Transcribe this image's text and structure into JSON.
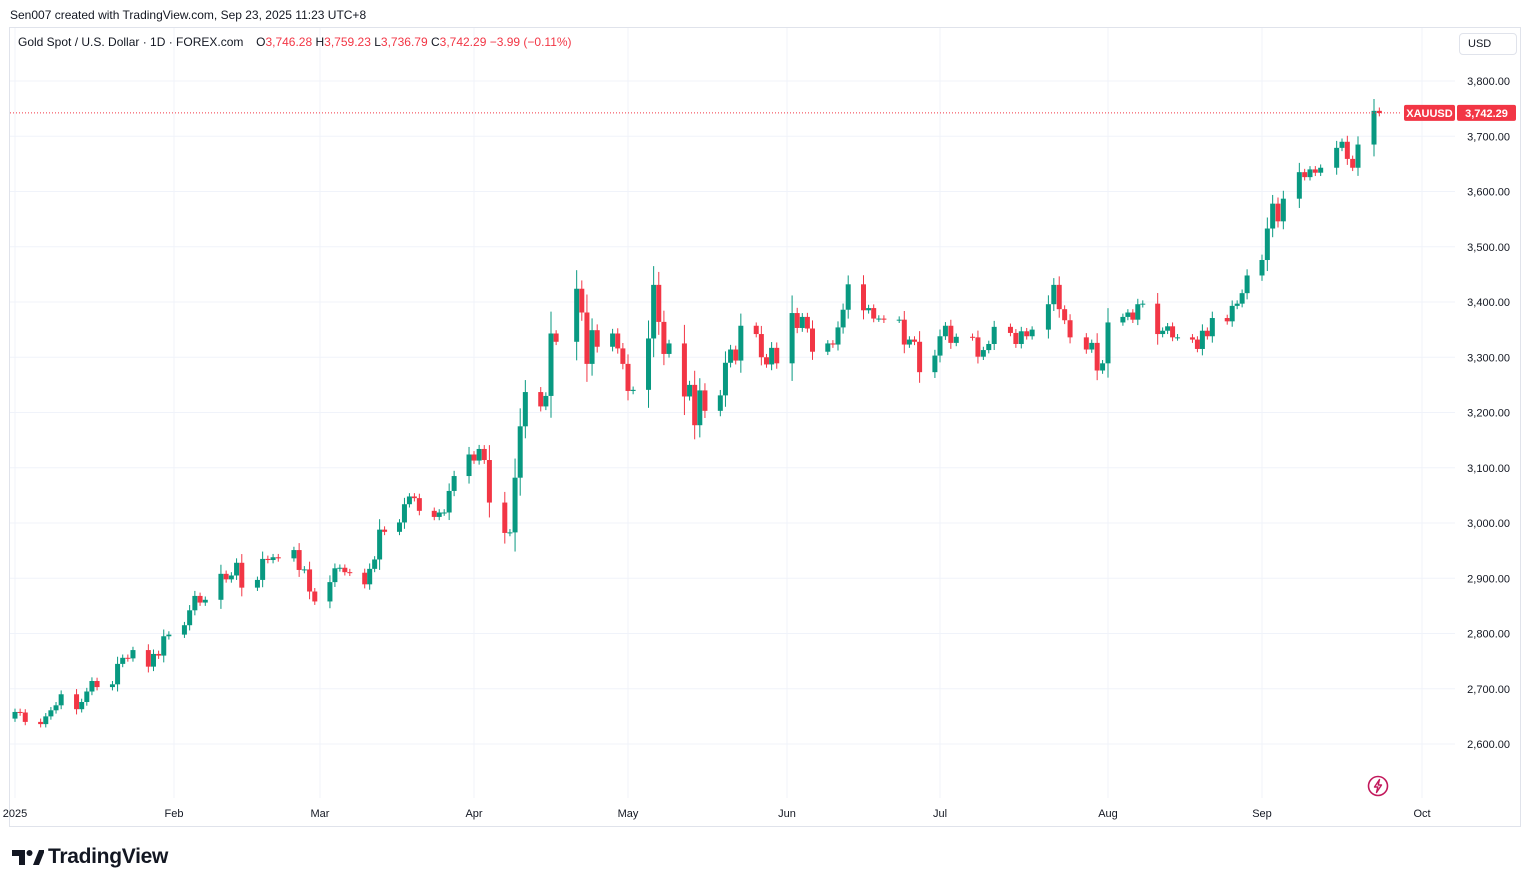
{
  "header": {
    "created_by": "Sen007 created with TradingView.com, Sep 23, 2025 11:23 UTC+8"
  },
  "legend": {
    "symbol": "Gold Spot / U.S. Dollar · 1D · FOREX.com",
    "o_label": "O",
    "o_value": "3,746.28",
    "h_label": "H",
    "h_value": "3,759.23",
    "l_label": "L",
    "l_value": "3,736.79",
    "c_label": "C",
    "c_value": "3,742.29",
    "change": "−3.99 (−0.11%)"
  },
  "currency_button": "USD",
  "price_tag": {
    "label": "XAUUSD",
    "value": "3,742.29"
  },
  "brand": {
    "name": "TradingView"
  },
  "colors": {
    "up": "#089981",
    "down": "#f23645",
    "grid": "#f0f3fa",
    "axis_text": "#131722"
  },
  "icons": {
    "logo": "tradingview-logo-icon",
    "flash": "lightning-icon"
  },
  "chart_data": {
    "type": "candlestick",
    "ylim": [
      2520,
      3830
    ],
    "y_ticks": [
      2600,
      2700,
      2800,
      2900,
      3000,
      3100,
      3200,
      3300,
      3400,
      3500,
      3600,
      3700,
      3800
    ],
    "y_tick_labels": [
      "2,600.00",
      "2,700.00",
      "2,800.00",
      "2,900.00",
      "3,000.00",
      "3,100.00",
      "3,200.00",
      "3,300.00",
      "3,400.00",
      "3,500.00",
      "3,600.00",
      "3,700.00",
      "3,800.00"
    ],
    "x_ticks": [
      {
        "label": "2025",
        "date": "2025-01-01"
      },
      {
        "label": "Feb",
        "date": "2025-02-01"
      },
      {
        "label": "Mar",
        "date": "2025-03-01"
      },
      {
        "label": "Apr",
        "date": "2025-04-01"
      },
      {
        "label": "May",
        "date": "2025-05-01"
      },
      {
        "label": "Jun",
        "date": "2025-06-01"
      },
      {
        "label": "Jul",
        "date": "2025-07-01"
      },
      {
        "label": "Aug",
        "date": "2025-08-01"
      },
      {
        "label": "Sep",
        "date": "2025-09-01"
      },
      {
        "label": "Oct",
        "date": "2025-10-01"
      }
    ],
    "last_price": 3742.29,
    "closes": [
      {
        "date": "2025-01-01",
        "value": 2658
      },
      {
        "date": "2025-01-02",
        "value": 2657
      },
      {
        "date": "2025-01-03",
        "value": 2640
      },
      {
        "date": "2025-01-06",
        "value": 2636
      },
      {
        "date": "2025-01-07",
        "value": 2650
      },
      {
        "date": "2025-01-08",
        "value": 2661
      },
      {
        "date": "2025-01-09",
        "value": 2670
      },
      {
        "date": "2025-01-10",
        "value": 2690
      },
      {
        "date": "2025-01-13",
        "value": 2663
      },
      {
        "date": "2025-01-14",
        "value": 2676
      },
      {
        "date": "2025-01-15",
        "value": 2695
      },
      {
        "date": "2025-01-16",
        "value": 2714
      },
      {
        "date": "2025-01-17",
        "value": 2703
      },
      {
        "date": "2025-01-20",
        "value": 2708
      },
      {
        "date": "2025-01-21",
        "value": 2745
      },
      {
        "date": "2025-01-22",
        "value": 2756
      },
      {
        "date": "2025-01-23",
        "value": 2755
      },
      {
        "date": "2025-01-24",
        "value": 2770
      },
      {
        "date": "2025-01-27",
        "value": 2740
      },
      {
        "date": "2025-01-28",
        "value": 2763
      },
      {
        "date": "2025-01-29",
        "value": 2760
      },
      {
        "date": "2025-01-30",
        "value": 2795
      },
      {
        "date": "2025-01-31",
        "value": 2798
      },
      {
        "date": "2025-02-03",
        "value": 2815
      },
      {
        "date": "2025-02-04",
        "value": 2842
      },
      {
        "date": "2025-02-05",
        "value": 2868
      },
      {
        "date": "2025-02-06",
        "value": 2856
      },
      {
        "date": "2025-02-07",
        "value": 2861
      },
      {
        "date": "2025-02-10",
        "value": 2908
      },
      {
        "date": "2025-02-11",
        "value": 2898
      },
      {
        "date": "2025-02-12",
        "value": 2905
      },
      {
        "date": "2025-02-13",
        "value": 2928
      },
      {
        "date": "2025-02-14",
        "value": 2883
      },
      {
        "date": "2025-02-17",
        "value": 2897
      },
      {
        "date": "2025-02-18",
        "value": 2935
      },
      {
        "date": "2025-02-19",
        "value": 2933
      },
      {
        "date": "2025-02-20",
        "value": 2938
      },
      {
        "date": "2025-02-21",
        "value": 2936
      },
      {
        "date": "2025-02-24",
        "value": 2951
      },
      {
        "date": "2025-02-25",
        "value": 2915
      },
      {
        "date": "2025-02-26",
        "value": 2916
      },
      {
        "date": "2025-02-27",
        "value": 2876
      },
      {
        "date": "2025-02-28",
        "value": 2858
      },
      {
        "date": "2025-03-03",
        "value": 2893
      },
      {
        "date": "2025-03-04",
        "value": 2918
      },
      {
        "date": "2025-03-05",
        "value": 2919
      },
      {
        "date": "2025-03-06",
        "value": 2911
      },
      {
        "date": "2025-03-07",
        "value": 2910
      },
      {
        "date": "2025-03-10",
        "value": 2889
      },
      {
        "date": "2025-03-11",
        "value": 2917
      },
      {
        "date": "2025-03-12",
        "value": 2934
      },
      {
        "date": "2025-03-13",
        "value": 2988
      },
      {
        "date": "2025-03-14",
        "value": 2984
      },
      {
        "date": "2025-03-17",
        "value": 3001
      },
      {
        "date": "2025-03-18",
        "value": 3034
      },
      {
        "date": "2025-03-19",
        "value": 3048
      },
      {
        "date": "2025-03-20",
        "value": 3045
      },
      {
        "date": "2025-03-21",
        "value": 3022
      },
      {
        "date": "2025-03-24",
        "value": 3011
      },
      {
        "date": "2025-03-25",
        "value": 3019
      },
      {
        "date": "2025-03-26",
        "value": 3019
      },
      {
        "date": "2025-03-27",
        "value": 3058
      },
      {
        "date": "2025-03-28",
        "value": 3085
      },
      {
        "date": "2025-03-31",
        "value": 3124
      },
      {
        "date": "2025-04-01",
        "value": 3113
      },
      {
        "date": "2025-04-02",
        "value": 3134
      },
      {
        "date": "2025-04-03",
        "value": 3114
      },
      {
        "date": "2025-04-04",
        "value": 3037
      },
      {
        "date": "2025-04-07",
        "value": 2982
      },
      {
        "date": "2025-04-08",
        "value": 2983
      },
      {
        "date": "2025-04-09",
        "value": 3082
      },
      {
        "date": "2025-04-10",
        "value": 3175
      },
      {
        "date": "2025-04-11",
        "value": 3237
      },
      {
        "date": "2025-04-14",
        "value": 3211
      },
      {
        "date": "2025-04-15",
        "value": 3230
      },
      {
        "date": "2025-04-16",
        "value": 3343
      },
      {
        "date": "2025-04-17",
        "value": 3328
      },
      {
        "date": "2025-04-21",
        "value": 3424
      },
      {
        "date": "2025-04-22",
        "value": 3381
      },
      {
        "date": "2025-04-23",
        "value": 3288
      },
      {
        "date": "2025-04-24",
        "value": 3349
      },
      {
        "date": "2025-04-25",
        "value": 3319
      },
      {
        "date": "2025-04-28",
        "value": 3343
      },
      {
        "date": "2025-04-29",
        "value": 3316
      },
      {
        "date": "2025-04-30",
        "value": 3288
      },
      {
        "date": "2025-05-01",
        "value": 3239
      },
      {
        "date": "2025-05-02",
        "value": 3241
      },
      {
        "date": "2025-05-05",
        "value": 3334
      },
      {
        "date": "2025-05-06",
        "value": 3431
      },
      {
        "date": "2025-05-07",
        "value": 3364
      },
      {
        "date": "2025-05-08",
        "value": 3306
      },
      {
        "date": "2025-05-09",
        "value": 3325
      },
      {
        "date": "2025-05-12",
        "value": 3229
      },
      {
        "date": "2025-05-13",
        "value": 3250
      },
      {
        "date": "2025-05-14",
        "value": 3177
      },
      {
        "date": "2025-05-15",
        "value": 3240
      },
      {
        "date": "2025-05-16",
        "value": 3203
      },
      {
        "date": "2025-05-19",
        "value": 3231
      },
      {
        "date": "2025-05-20",
        "value": 3290
      },
      {
        "date": "2025-05-21",
        "value": 3314
      },
      {
        "date": "2025-05-22",
        "value": 3294
      },
      {
        "date": "2025-05-23",
        "value": 3357
      },
      {
        "date": "2025-05-26",
        "value": 3342
      },
      {
        "date": "2025-05-27",
        "value": 3300
      },
      {
        "date": "2025-05-28",
        "value": 3287
      },
      {
        "date": "2025-05-29",
        "value": 3317
      },
      {
        "date": "2025-05-30",
        "value": 3289
      },
      {
        "date": "2025-06-02",
        "value": 3380
      },
      {
        "date": "2025-06-03",
        "value": 3353
      },
      {
        "date": "2025-06-04",
        "value": 3373
      },
      {
        "date": "2025-06-05",
        "value": 3352
      },
      {
        "date": "2025-06-06",
        "value": 3310
      },
      {
        "date": "2025-06-09",
        "value": 3325
      },
      {
        "date": "2025-06-10",
        "value": 3323
      },
      {
        "date": "2025-06-11",
        "value": 3354
      },
      {
        "date": "2025-06-12",
        "value": 3386
      },
      {
        "date": "2025-06-13",
        "value": 3432
      },
      {
        "date": "2025-06-16",
        "value": 3385
      },
      {
        "date": "2025-06-17",
        "value": 3389
      },
      {
        "date": "2025-06-18",
        "value": 3370
      },
      {
        "date": "2025-06-19",
        "value": 3370
      },
      {
        "date": "2025-06-20",
        "value": 3368
      },
      {
        "date": "2025-06-23",
        "value": 3368
      },
      {
        "date": "2025-06-24",
        "value": 3323
      },
      {
        "date": "2025-06-25",
        "value": 3332
      },
      {
        "date": "2025-06-26",
        "value": 3328
      },
      {
        "date": "2025-06-27",
        "value": 3273
      },
      {
        "date": "2025-06-30",
        "value": 3303
      },
      {
        "date": "2025-07-01",
        "value": 3338
      },
      {
        "date": "2025-07-02",
        "value": 3357
      },
      {
        "date": "2025-07-03",
        "value": 3326
      },
      {
        "date": "2025-07-04",
        "value": 3337
      },
      {
        "date": "2025-07-07",
        "value": 3336
      },
      {
        "date": "2025-07-08",
        "value": 3301
      },
      {
        "date": "2025-07-09",
        "value": 3313
      },
      {
        "date": "2025-07-10",
        "value": 3324
      },
      {
        "date": "2025-07-11",
        "value": 3355
      },
      {
        "date": "2025-07-14",
        "value": 3344
      },
      {
        "date": "2025-07-15",
        "value": 3324
      },
      {
        "date": "2025-07-16",
        "value": 3347
      },
      {
        "date": "2025-07-17",
        "value": 3338
      },
      {
        "date": "2025-07-18",
        "value": 3350
      },
      {
        "date": "2025-07-21",
        "value": 3396
      },
      {
        "date": "2025-07-22",
        "value": 3431
      },
      {
        "date": "2025-07-23",
        "value": 3387
      },
      {
        "date": "2025-07-24",
        "value": 3367
      },
      {
        "date": "2025-07-25",
        "value": 3336
      },
      {
        "date": "2025-07-28",
        "value": 3314
      },
      {
        "date": "2025-07-29",
        "value": 3326
      },
      {
        "date": "2025-07-30",
        "value": 3276
      },
      {
        "date": "2025-07-31",
        "value": 3289
      },
      {
        "date": "2025-08-01",
        "value": 3363
      },
      {
        "date": "2025-08-04",
        "value": 3373
      },
      {
        "date": "2025-08-05",
        "value": 3381
      },
      {
        "date": "2025-08-06",
        "value": 3368
      },
      {
        "date": "2025-08-07",
        "value": 3396
      },
      {
        "date": "2025-08-08",
        "value": 3397
      },
      {
        "date": "2025-08-11",
        "value": 3342
      },
      {
        "date": "2025-08-12",
        "value": 3348
      },
      {
        "date": "2025-08-13",
        "value": 3356
      },
      {
        "date": "2025-08-14",
        "value": 3336
      },
      {
        "date": "2025-08-15",
        "value": 3336
      },
      {
        "date": "2025-08-18",
        "value": 3332
      },
      {
        "date": "2025-08-19",
        "value": 3315
      },
      {
        "date": "2025-08-20",
        "value": 3348
      },
      {
        "date": "2025-08-21",
        "value": 3338
      },
      {
        "date": "2025-08-22",
        "value": 3371
      },
      {
        "date": "2025-08-25",
        "value": 3365
      },
      {
        "date": "2025-08-26",
        "value": 3393
      },
      {
        "date": "2025-08-27",
        "value": 3397
      },
      {
        "date": "2025-08-28",
        "value": 3416
      },
      {
        "date": "2025-08-29",
        "value": 3448
      },
      {
        "date": "2025-09-01",
        "value": 3476
      },
      {
        "date": "2025-09-02",
        "value": 3533
      },
      {
        "date": "2025-09-03",
        "value": 3578
      },
      {
        "date": "2025-09-04",
        "value": 3546
      },
      {
        "date": "2025-09-05",
        "value": 3587
      },
      {
        "date": "2025-09-08",
        "value": 3635
      },
      {
        "date": "2025-09-09",
        "value": 3626
      },
      {
        "date": "2025-09-10",
        "value": 3640
      },
      {
        "date": "2025-09-11",
        "value": 3634
      },
      {
        "date": "2025-09-12",
        "value": 3643
      },
      {
        "date": "2025-09-15",
        "value": 3679
      },
      {
        "date": "2025-09-16",
        "value": 3690
      },
      {
        "date": "2025-09-17",
        "value": 3659
      },
      {
        "date": "2025-09-18",
        "value": 3643
      },
      {
        "date": "2025-09-19",
        "value": 3685
      },
      {
        "date": "2025-09-22",
        "value": 3746
      },
      {
        "date": "2025-09-23",
        "value": 3742
      }
    ]
  }
}
